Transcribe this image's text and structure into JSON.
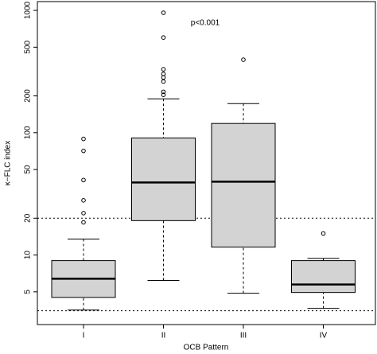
{
  "chart_data": {
    "type": "box",
    "annotation": "p<0.001",
    "x_label": "OCB Pattern",
    "y_label": "κ−FLC index",
    "log_y": true,
    "ylim": [
      2.7,
      1180
    ],
    "yticks": [
      5,
      10,
      20,
      50,
      100,
      200,
      500,
      1000
    ],
    "reference_lines": [
      20,
      3.5
    ],
    "color": "#d3d3d3",
    "categories": [
      "I",
      "II",
      "III",
      "IV"
    ],
    "boxes": [
      {
        "whisker_low": 3.55,
        "q1": 4.5,
        "median": 6.4,
        "q3": 9.0,
        "whisker_high": 13.5,
        "outliers": [
          89,
          71,
          41,
          28,
          22,
          18.5
        ]
      },
      {
        "whisker_low": 6.2,
        "q1": 19.1,
        "median": 39.2,
        "q3": 90.6,
        "whisker_high": 189,
        "outliers": [
          956,
          600,
          330,
          302,
          283,
          262,
          216,
          204
        ]
      },
      {
        "whisker_low": 4.87,
        "q1": 11.6,
        "median": 39.8,
        "q3": 119,
        "whisker_high": 173,
        "outliers": [
          395
        ]
      },
      {
        "whisker_low": 3.66,
        "q1": 4.94,
        "median": 5.74,
        "q3": 9.0,
        "whisker_high": 9.4,
        "outliers": [
          15
        ]
      }
    ]
  }
}
